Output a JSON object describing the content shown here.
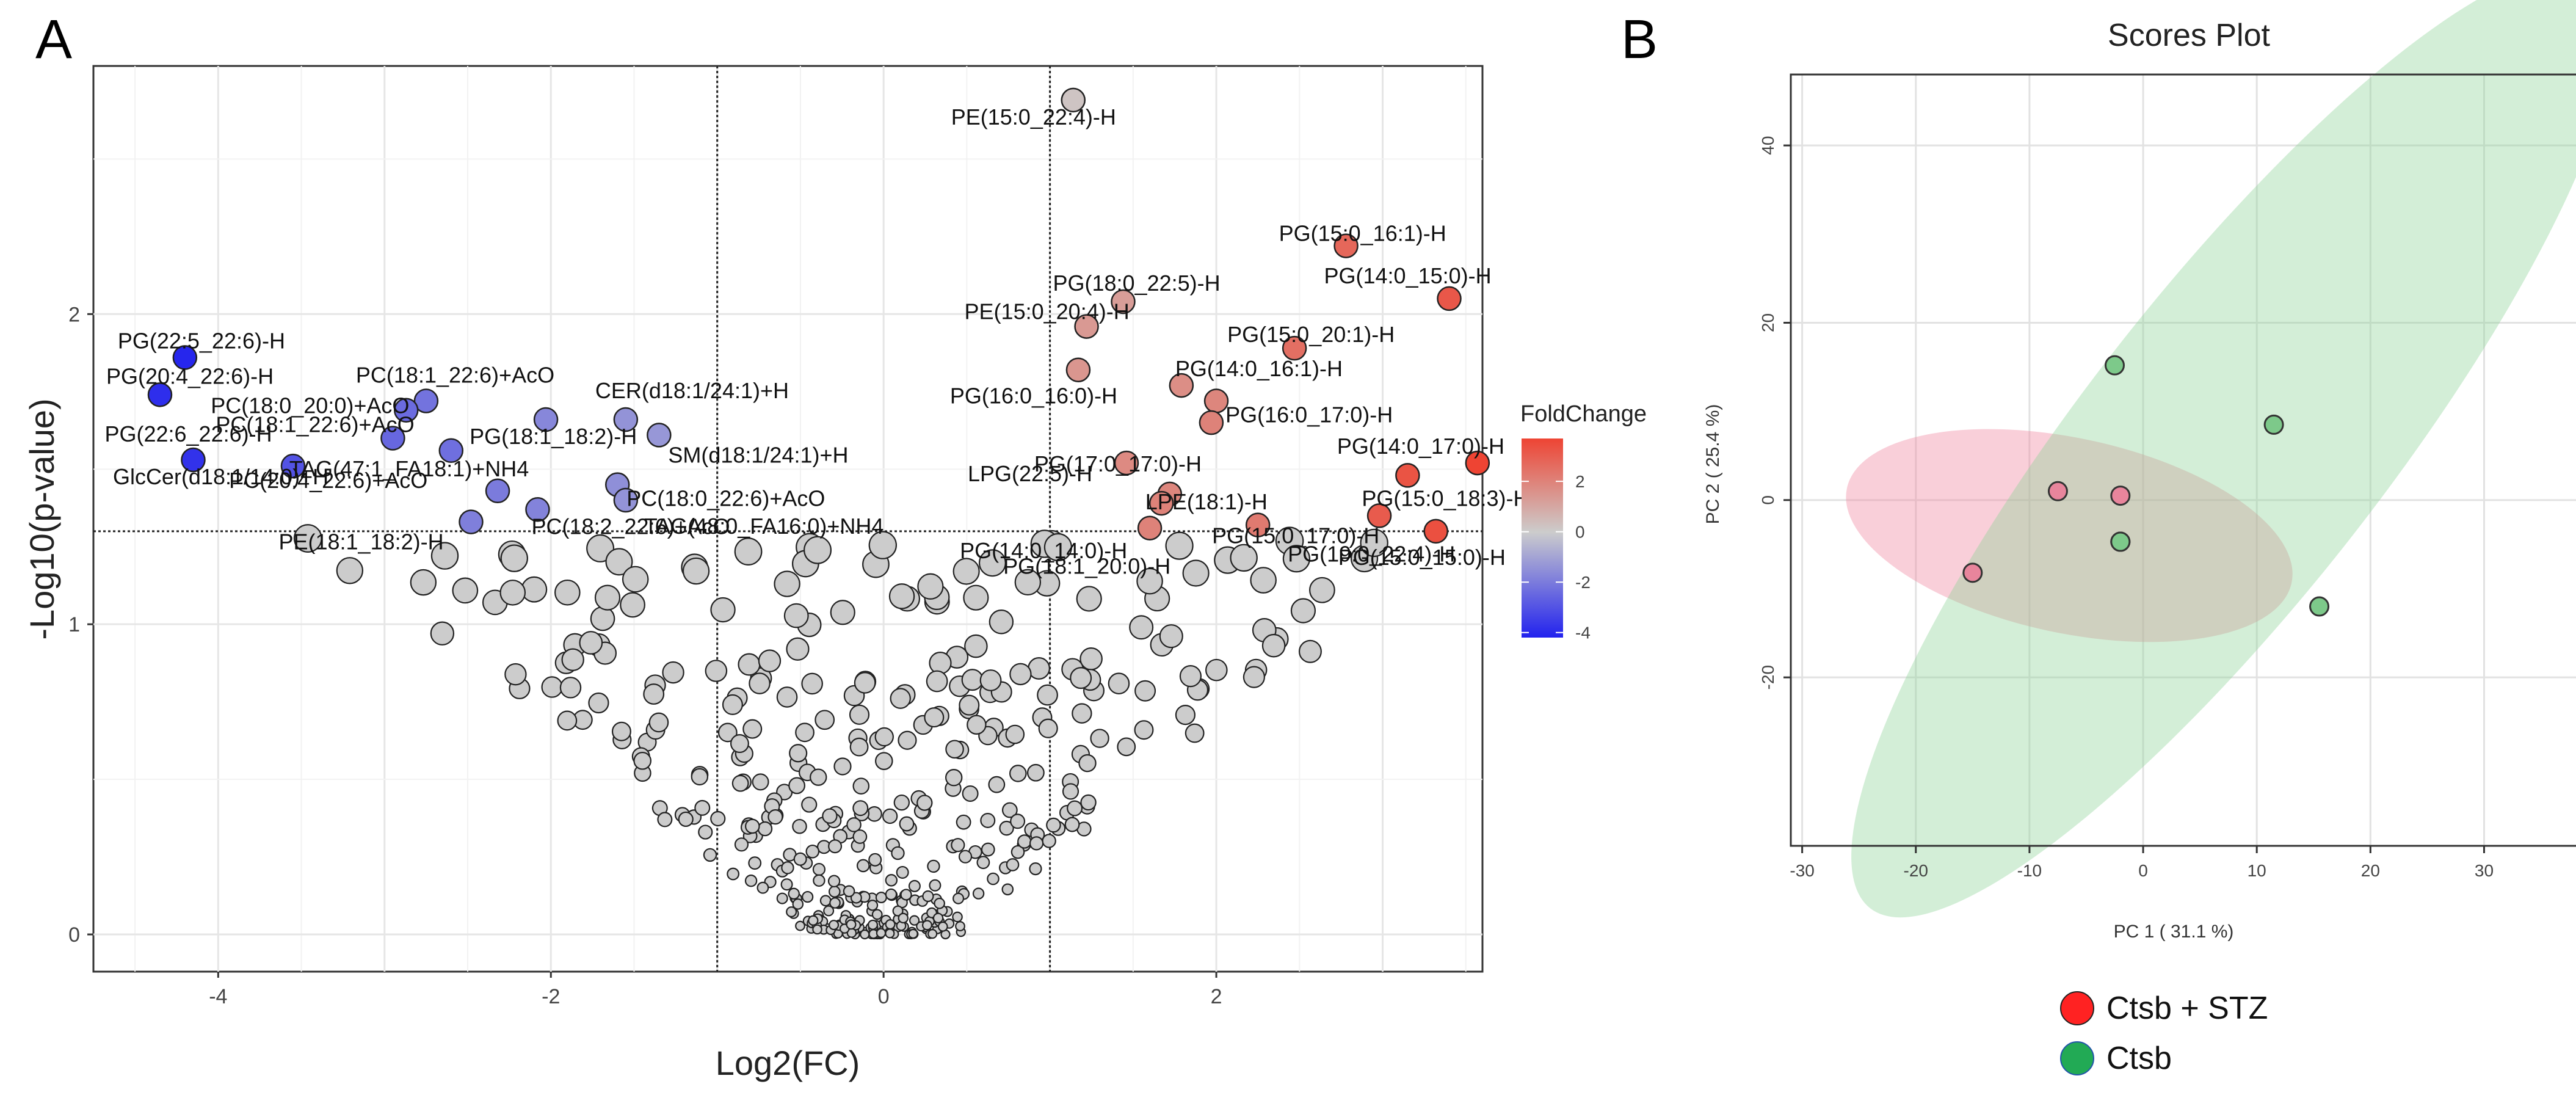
{
  "panels": {
    "a": {
      "letter": "A"
    },
    "b": {
      "letter": "B"
    }
  },
  "chart_data": [
    {
      "type": "scatter",
      "title": "",
      "xlabel": "Log2(FC)",
      "ylabel": "-Log10(p-value)",
      "xlim": [
        -4.75,
        3.6
      ],
      "ylim": [
        -0.12,
        2.8
      ],
      "xticks": [
        -4,
        -2,
        0,
        2
      ],
      "yticks": [
        0,
        1,
        2
      ],
      "grid": true,
      "thresholds": {
        "x": [
          -1,
          1
        ],
        "y": 1.3
      },
      "colors": {
        "high": "#ee4433",
        "mid": "#cccccc",
        "low": "#2222ee",
        "nonsignificant": "#cccccc"
      },
      "legend": {
        "title": "FoldChange",
        "placement": "right",
        "ticks": [
          2,
          0,
          -2,
          -4
        ],
        "range": [
          -4.2,
          3.7
        ]
      },
      "labeled_points": [
        {
          "label": "PE(15:0_22:4)-H",
          "x": 1.14,
          "y": 2.69,
          "fc": 0.2
        },
        {
          "label": "PG(15:0_16:1)-H",
          "x": 2.78,
          "y": 2.22,
          "fc": 2.6
        },
        {
          "label": "PG(14:0_15:0)-H",
          "x": 3.4,
          "y": 2.05,
          "fc": 3.0
        },
        {
          "label": "PG(18:0_22:5)-H",
          "x": 1.44,
          "y": 2.04,
          "fc": 1.2
        },
        {
          "label": "PE(15:0_20:4)-H",
          "x": 1.22,
          "y": 1.96,
          "fc": 1.3
        },
        {
          "label": "PG(15:0_20:1)-H",
          "x": 2.47,
          "y": 1.89,
          "fc": 2.4
        },
        {
          "label": "PG(16:0_16:0)-H",
          "x": 1.17,
          "y": 1.82,
          "fc": 1.4
        },
        {
          "label": "PG(14:0_16:1)-H",
          "x": 1.79,
          "y": 1.77,
          "fc": 1.6
        },
        {
          "label": "PG(16:0_17:0)-H",
          "x": 2.0,
          "y": 1.72,
          "fc": 1.8
        },
        {
          "label": "PG(17:0_17:0)-H",
          "x": 1.97,
          "y": 1.65,
          "fc": 1.9
        },
        {
          "label": "PG(14:0_17:0)-H",
          "x": 3.57,
          "y": 1.52,
          "fc": 3.5
        },
        {
          "label": "LPG(22:5)-H",
          "x": 1.46,
          "y": 1.52,
          "fc": 1.7
        },
        {
          "label": "LPE(18:1)-H",
          "x": 1.72,
          "y": 1.42,
          "fc": 1.8
        },
        {
          "label": "PG(15:0_18:3)-H",
          "x": 3.15,
          "y": 1.48,
          "fc": 3.1
        },
        {
          "label": "PG(14:0_14:0)-H",
          "x": 1.67,
          "y": 1.39,
          "fc": 1.9
        },
        {
          "label": "PG(18:1_20:0)-H",
          "x": 1.6,
          "y": 1.31,
          "fc": 1.9
        },
        {
          "label": "PG(15:0_17:0)-H",
          "x": 2.25,
          "y": 1.32,
          "fc": 2.1
        },
        {
          "label": "PG(19:0_22:4)-H",
          "x": 2.98,
          "y": 1.35,
          "fc": 2.9
        },
        {
          "label": "PG(15:0_15:0)-H",
          "x": 3.32,
          "y": 1.3,
          "fc": 3.2
        },
        {
          "label": "PG(22:5_22:6)-H",
          "x": -4.2,
          "y": 1.86,
          "fc": -4.1
        },
        {
          "label": "PG(20:4_22:6)-H",
          "x": -4.35,
          "y": 1.74,
          "fc": -3.9
        },
        {
          "label": "PG(22:6_22:6)-H",
          "x": -4.15,
          "y": 1.53,
          "fc": -3.8
        },
        {
          "label": "PC(18:1_22:6)+AcO",
          "x": -2.75,
          "y": 1.72,
          "fc": -2.2
        },
        {
          "label": "PC(18:0_20:0)+AcO",
          "x": -2.87,
          "y": 1.69,
          "fc": -2.4
        },
        {
          "label": "PC(18:1_22:6)+AcO",
          "x": -2.95,
          "y": 1.6,
          "fc": -2.5
        },
        {
          "label": "GlcCer(d18:1/14:0)+H",
          "x": -3.55,
          "y": 1.51,
          "fc": -3.0
        },
        {
          "label": "TAG(47:1_FA18:1)+NH4",
          "x": -2.6,
          "y": 1.56,
          "fc": -2.3
        },
        {
          "label": "PG(18:1_18:2)-H",
          "x": -2.03,
          "y": 1.66,
          "fc": -1.7
        },
        {
          "label": "CER(d18:1/24:1)+H",
          "x": -1.55,
          "y": 1.66,
          "fc": -1.4
        },
        {
          "label": "SM(d18:1/24:1)+H",
          "x": -1.35,
          "y": 1.61,
          "fc": -1.3
        },
        {
          "label": "PC(18:0_22:6)+AcO",
          "x": -1.6,
          "y": 1.45,
          "fc": -1.5
        },
        {
          "label": "TAG(48:0_FA16:0)+NH4",
          "x": -1.55,
          "y": 1.4,
          "fc": -1.4
        },
        {
          "label": "PC(20:4_22:6)+AcO",
          "x": -2.32,
          "y": 1.43,
          "fc": -2.0
        },
        {
          "label": "PE(18:1_18:2)-H",
          "x": -2.48,
          "y": 1.33,
          "fc": -1.9
        },
        {
          "label": "PC(18:2_22:6)+AcO",
          "x": -2.08,
          "y": 1.37,
          "fc": -1.8
        }
      ]
    },
    {
      "type": "scatter",
      "title": "Scores Plot",
      "xlabel": "PC 1 ( 31.1 %)",
      "ylabel": "PC 2 ( 25.4 %)",
      "xlim": [
        -31,
        39
      ],
      "ylim": [
        -39,
        48
      ],
      "xticks": [
        -30,
        -20,
        -10,
        0,
        10,
        20,
        30
      ],
      "yticks": [
        -20,
        0,
        20,
        40
      ],
      "grid": true,
      "series": [
        {
          "name": "Ctsb + STZ",
          "color": "#e8859c",
          "legend_color": "#ff2222",
          "x": [
            -15,
            -7.5,
            -2,
            -2
          ],
          "y": [
            -8.2,
            1,
            0.5,
            -4.7
          ],
          "ellipse": {
            "cx": -6.5,
            "cy": -4,
            "rx": 20,
            "ry": 11,
            "angle_deg": 12
          }
        },
        {
          "name": "Ctsb",
          "color": "#7dc98a",
          "legend_color": "#22aa55",
          "x": [
            -2.5,
            11.5,
            15.5,
            -2
          ],
          "y": [
            15.2,
            8.5,
            -12,
            -4.7
          ],
          "ellipse": {
            "cx": 8,
            "cy": 6.5,
            "rx": 52,
            "ry": 17,
            "angle_deg": -52
          }
        }
      ]
    }
  ]
}
